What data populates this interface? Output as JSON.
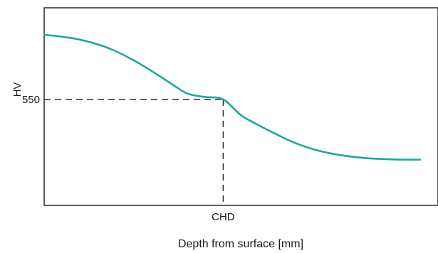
{
  "chart_data": {
    "type": "line",
    "xlabel": "Depth from surface [mm]",
    "ylabel": "HV",
    "x_ticks": [
      {
        "label": "CHD",
        "value": 0.5
      }
    ],
    "y_ticks": [
      {
        "label": "550",
        "value": 550
      }
    ],
    "xlim": [
      0,
      1.1
    ],
    "ylim": [
      330,
      740
    ],
    "grid": false,
    "reference_point": {
      "x": 0.5,
      "y": 550,
      "style": "dashed"
    },
    "series": [
      {
        "color": "#1fa89a",
        "x": [
          0.0,
          0.05,
          0.1,
          0.15,
          0.2,
          0.25,
          0.3,
          0.35,
          0.4,
          0.45,
          0.5,
          0.55,
          0.6,
          0.65,
          0.7,
          0.75,
          0.8,
          0.85,
          0.9,
          0.95,
          1.0,
          1.05
        ],
        "values": [
          684,
          680,
          674,
          664,
          650,
          631,
          609,
          585,
          562,
          555,
          550,
          517,
          496,
          477,
          460,
          447,
          438,
          432,
          428,
          426,
          425,
          425
        ]
      }
    ]
  }
}
